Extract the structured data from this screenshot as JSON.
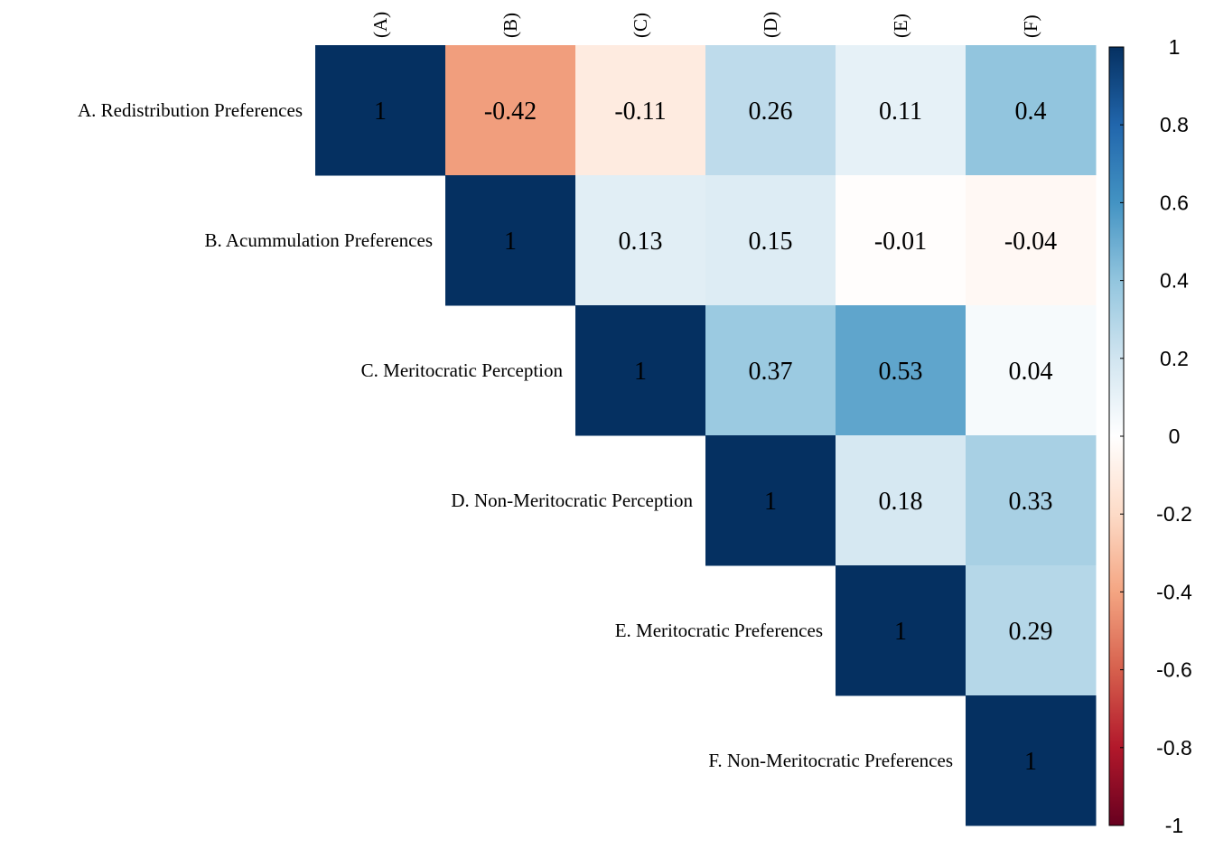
{
  "chart_data": {
    "type": "heatmap",
    "variant": "upper-triangle correlation matrix",
    "row_labels": [
      "A. Redistribution Preferences",
      "B. Acummulation Preferences",
      "C. Meritocratic Perception",
      "D. Non-Meritocratic Perception",
      "E. Meritocratic Preferences",
      "F. Non-Meritocratic Preferences"
    ],
    "col_labels": [
      "(A)",
      "(B)",
      "(C)",
      "(D)",
      "(E)",
      "(F)"
    ],
    "matrix": [
      [
        1,
        -0.42,
        -0.11,
        0.26,
        0.11,
        0.4
      ],
      [
        null,
        1,
        0.13,
        0.15,
        -0.01,
        -0.04
      ],
      [
        null,
        null,
        1,
        0.37,
        0.53,
        0.04
      ],
      [
        null,
        null,
        null,
        1,
        0.18,
        0.33
      ],
      [
        null,
        null,
        null,
        null,
        1,
        0.29
      ],
      [
        null,
        null,
        null,
        null,
        null,
        1
      ]
    ],
    "color_scale": {
      "range": [
        -1,
        1
      ],
      "palette": "RdBu",
      "stops": [
        "#67001F",
        "#B2182B",
        "#D6604D",
        "#F4A582",
        "#FDDBC7",
        "#FFFFFF",
        "#D1E5F0",
        "#92C5DE",
        "#4393C3",
        "#2166AC",
        "#053061"
      ],
      "ticks": [
        1,
        0.8,
        0.6,
        0.4,
        0.2,
        0,
        -0.2,
        -0.4,
        -0.6,
        -0.8,
        -1
      ],
      "legend_position": "right"
    }
  }
}
